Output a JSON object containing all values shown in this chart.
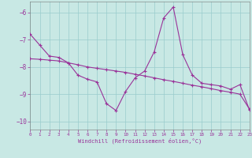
{
  "bg_color": "#c8e8e4",
  "line_color": "#993399",
  "grid_color": "#99cccc",
  "xlim": [
    0,
    23
  ],
  "ylim": [
    -10.3,
    -5.6
  ],
  "yticks": [
    -10,
    -9,
    -8,
    -7,
    -6
  ],
  "xticks": [
    0,
    1,
    2,
    3,
    4,
    5,
    6,
    7,
    8,
    9,
    10,
    11,
    12,
    13,
    14,
    15,
    16,
    17,
    18,
    19,
    20,
    21,
    22,
    23
  ],
  "xlabel": "Windchill (Refroidissement éolien,°C)",
  "curve_a_x": [
    0,
    1,
    2,
    3,
    4,
    5,
    6,
    7,
    8,
    9,
    10,
    11,
    12,
    13,
    14,
    15,
    16,
    17,
    18,
    19,
    20,
    21,
    22,
    23
  ],
  "curve_a_y": [
    -6.8,
    -7.2,
    -7.6,
    -7.65,
    -7.85,
    -8.3,
    -8.45,
    -8.55,
    -9.35,
    -9.6,
    -8.9,
    -8.4,
    -8.15,
    -7.45,
    -6.2,
    -5.8,
    -7.55,
    -8.3,
    -8.6,
    -8.65,
    -8.7,
    -8.82,
    -8.65,
    -9.58
  ],
  "curve_b_x": [
    0,
    1,
    2,
    3,
    4,
    5,
    6,
    7,
    8,
    9,
    10,
    11,
    12,
    13,
    14,
    15,
    16,
    17,
    18,
    19,
    20,
    21,
    22,
    23
  ],
  "curve_b_y": [
    -7.7,
    -7.72,
    -7.75,
    -7.78,
    -7.85,
    -7.92,
    -8.0,
    -8.05,
    -8.1,
    -8.15,
    -8.2,
    -8.27,
    -8.33,
    -8.4,
    -8.47,
    -8.53,
    -8.6,
    -8.67,
    -8.73,
    -8.8,
    -8.87,
    -8.93,
    -9.0,
    -9.55
  ]
}
